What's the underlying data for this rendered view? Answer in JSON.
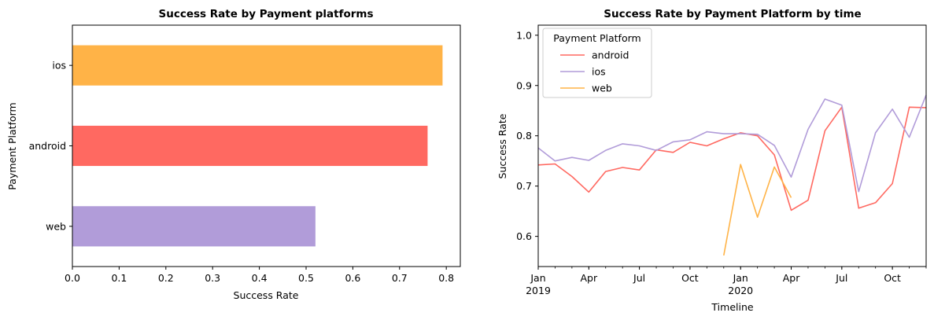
{
  "chart_data": [
    {
      "type": "bar",
      "orientation": "horizontal",
      "title": "Success Rate by Payment platforms",
      "xlabel": "Success Rate",
      "ylabel": "Payment Platform",
      "categories": [
        "web",
        "android",
        "ios"
      ],
      "values": [
        0.52,
        0.76,
        0.792
      ],
      "colors": [
        "#b19cd9",
        "#ff6961",
        "#ffb347"
      ],
      "xlim": [
        0,
        0.83
      ],
      "xticks": [
        0.0,
        0.1,
        0.2,
        0.3,
        0.4,
        0.5,
        0.6,
        0.7,
        0.8
      ],
      "xtick_labels": [
        "0.0",
        "0.1",
        "0.2",
        "0.3",
        "0.4",
        "0.5",
        "0.6",
        "0.7",
        "0.8"
      ],
      "grid": false,
      "legend": "none"
    },
    {
      "type": "line",
      "title": "Success Rate by Payment Platform by time",
      "xlabel": "Timeline",
      "ylabel": "Success Rate",
      "ylim": [
        0.54,
        1.02
      ],
      "yticks": [
        0.6,
        0.7,
        0.8,
        0.9,
        1.0
      ],
      "ytick_labels": [
        "0.6",
        "0.7",
        "0.8",
        "0.9",
        "1.0"
      ],
      "xlim": [
        "2019-01",
        "2020-12"
      ],
      "xticks": [
        {
          "month": "2019-01",
          "label": "Jan",
          "sublabel": "2019"
        },
        {
          "month": "2019-04",
          "label": "Apr",
          "sublabel": ""
        },
        {
          "month": "2019-07",
          "label": "Jul",
          "sublabel": ""
        },
        {
          "month": "2019-10",
          "label": "Oct",
          "sublabel": ""
        },
        {
          "month": "2020-01",
          "label": "Jan",
          "sublabel": "2020"
        },
        {
          "month": "2020-04",
          "label": "Apr",
          "sublabel": ""
        },
        {
          "month": "2020-07",
          "label": "Jul",
          "sublabel": ""
        },
        {
          "month": "2020-10",
          "label": "Oct",
          "sublabel": ""
        }
      ],
      "legend": "top-left",
      "legend_title": "Payment Platform",
      "grid": false,
      "series": [
        {
          "name": "android",
          "color": "#ff6961",
          "points": [
            [
              "2019-01",
              0.742
            ],
            [
              "2019-02",
              0.744
            ],
            [
              "2019-03",
              0.719
            ],
            [
              "2019-04",
              0.688
            ],
            [
              "2019-05",
              0.729
            ],
            [
              "2019-06",
              0.737
            ],
            [
              "2019-07",
              0.732
            ],
            [
              "2019-08",
              0.772
            ],
            [
              "2019-09",
              0.767
            ],
            [
              "2019-10",
              0.787
            ],
            [
              "2019-11",
              0.78
            ],
            [
              "2019-12",
              0.794
            ],
            [
              "2020-01",
              0.806
            ],
            [
              "2020-02",
              0.8
            ],
            [
              "2020-03",
              0.762
            ],
            [
              "2020-04",
              0.652
            ],
            [
              "2020-05",
              0.672
            ],
            [
              "2020-06",
              0.81
            ],
            [
              "2020-07",
              0.857
            ],
            [
              "2020-08",
              0.656
            ],
            [
              "2020-09",
              0.667
            ],
            [
              "2020-10",
              0.705
            ],
            [
              "2020-11",
              0.857
            ],
            [
              "2020-12",
              0.856
            ]
          ]
        },
        {
          "name": "ios",
          "color": "#b19cd9",
          "points": [
            [
              "2019-01",
              0.776
            ],
            [
              "2019-02",
              0.75
            ],
            [
              "2019-03",
              0.757
            ],
            [
              "2019-04",
              0.751
            ],
            [
              "2019-05",
              0.771
            ],
            [
              "2019-06",
              0.784
            ],
            [
              "2019-07",
              0.78
            ],
            [
              "2019-08",
              0.771
            ],
            [
              "2019-09",
              0.788
            ],
            [
              "2019-10",
              0.792
            ],
            [
              "2019-11",
              0.808
            ],
            [
              "2019-12",
              0.804
            ],
            [
              "2020-01",
              0.804
            ],
            [
              "2020-02",
              0.803
            ],
            [
              "2020-03",
              0.781
            ],
            [
              "2020-04",
              0.718
            ],
            [
              "2020-05",
              0.813
            ],
            [
              "2020-06",
              0.873
            ],
            [
              "2020-07",
              0.861
            ],
            [
              "2020-08",
              0.689
            ],
            [
              "2020-09",
              0.806
            ],
            [
              "2020-10",
              0.853
            ],
            [
              "2020-11",
              0.797
            ],
            [
              "2020-12",
              0.881
            ]
          ]
        },
        {
          "name": "web",
          "color": "#ffb347",
          "points": [
            [
              "2019-12",
              0.562
            ],
            [
              "2020-01",
              0.743
            ],
            [
              "2020-02",
              0.638
            ],
            [
              "2020-03",
              0.738
            ],
            [
              "2020-04",
              0.677
            ]
          ]
        }
      ]
    }
  ]
}
